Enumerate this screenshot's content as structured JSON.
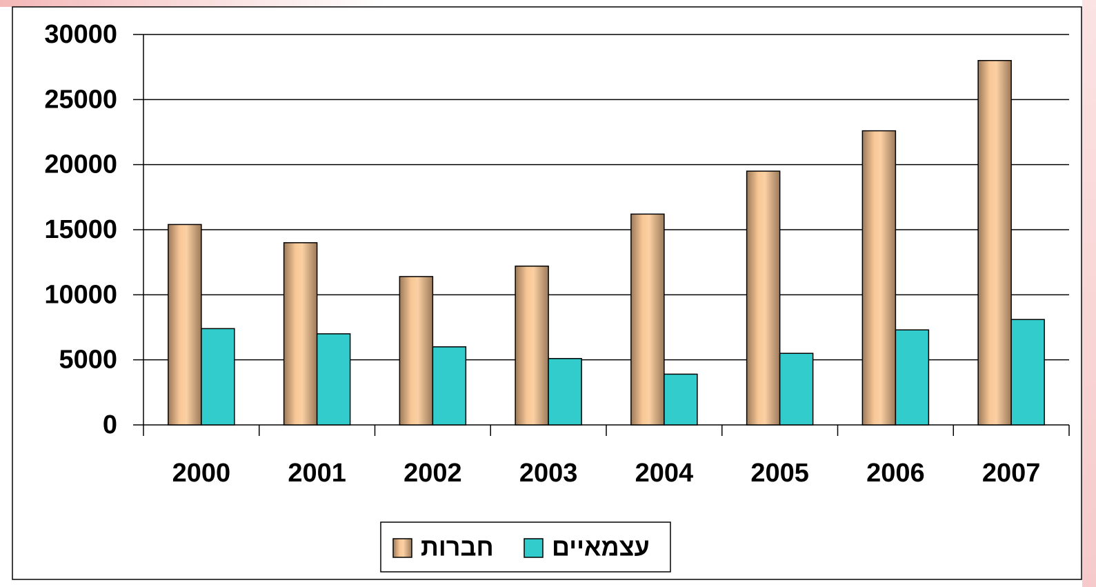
{
  "chart_data": {
    "type": "bar",
    "categories": [
      "2000",
      "2001",
      "2002",
      "2003",
      "2004",
      "2005",
      "2006",
      "2007"
    ],
    "series": [
      {
        "name": "חברות",
        "color": "#f5c08f",
        "values": [
          15400,
          14000,
          11400,
          12200,
          16200,
          19500,
          22600,
          28000
        ]
      },
      {
        "name": "עצמאיים",
        "color": "#33cccc",
        "values": [
          7400,
          7000,
          6000,
          5100,
          3900,
          5500,
          7300,
          8100
        ]
      }
    ],
    "ylim": [
      0,
      30000
    ],
    "yticks": [
      0,
      5000,
      10000,
      15000,
      20000,
      25000,
      30000
    ],
    "grid": true
  }
}
